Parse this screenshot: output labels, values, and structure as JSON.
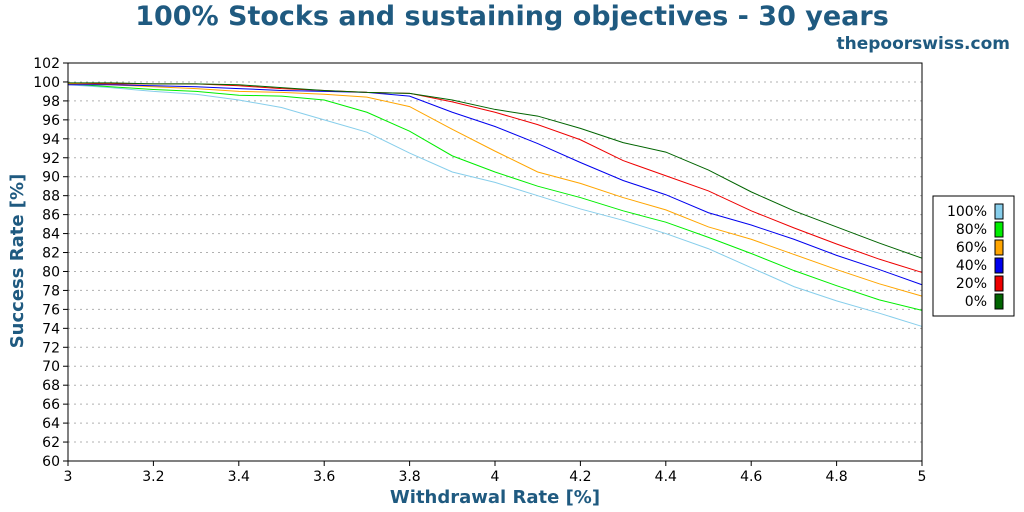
{
  "chart_data": {
    "type": "line",
    "title": "100% Stocks and sustaining objectives - 30 years",
    "subtitle": "thepoorswiss.com",
    "xlabel": "Withdrawal Rate [%]",
    "ylabel": "Success Rate [%]",
    "xlim": [
      3,
      5
    ],
    "ylim": [
      60,
      102
    ],
    "xticks": [
      "3",
      "3.2",
      "3.4",
      "3.6",
      "3.8",
      "4",
      "4.2",
      "4.4",
      "4.6",
      "4.8",
      "5"
    ],
    "yticks": [
      "60",
      "62",
      "64",
      "66",
      "68",
      "70",
      "72",
      "74",
      "76",
      "78",
      "80",
      "82",
      "84",
      "86",
      "88",
      "90",
      "92",
      "94",
      "96",
      "98",
      "100",
      "102"
    ],
    "grid": true,
    "legend_position": "right",
    "x": [
      3.0,
      3.1,
      3.2,
      3.3,
      3.4,
      3.5,
      3.6,
      3.7,
      3.8,
      3.9,
      4.0,
      4.1,
      4.2,
      4.3,
      4.4,
      4.5,
      4.6,
      4.7,
      4.8,
      4.9,
      5.0
    ],
    "series": [
      {
        "name": "100%",
        "color": "#87ceeb",
        "values": [
          99.7,
          99.4,
          99.0,
          98.7,
          98.1,
          97.3,
          96.0,
          94.7,
          92.5,
          90.5,
          89.4,
          88.0,
          86.6,
          85.4,
          84.0,
          82.4,
          80.4,
          78.4,
          76.9,
          75.6,
          74.2
        ]
      },
      {
        "name": "80%",
        "color": "#00ee00",
        "values": [
          99.8,
          99.5,
          99.2,
          99.0,
          98.6,
          98.5,
          98.1,
          96.8,
          94.8,
          92.2,
          90.5,
          89.0,
          87.8,
          86.4,
          85.2,
          83.6,
          81.9,
          80.1,
          78.5,
          77.0,
          75.9
        ]
      },
      {
        "name": "60%",
        "color": "#ffa500",
        "values": [
          99.8,
          99.7,
          99.5,
          99.3,
          99.0,
          98.9,
          98.7,
          98.4,
          97.4,
          95.0,
          92.7,
          90.5,
          89.3,
          87.8,
          86.5,
          84.7,
          83.4,
          81.8,
          80.2,
          78.7,
          77.4
        ]
      },
      {
        "name": "40%",
        "color": "#0000ee",
        "values": [
          99.7,
          99.7,
          99.6,
          99.5,
          99.3,
          99.1,
          99.0,
          98.9,
          98.5,
          96.8,
          95.3,
          93.5,
          91.5,
          89.6,
          88.1,
          86.2,
          84.9,
          83.4,
          81.7,
          80.2,
          78.6
        ]
      },
      {
        "name": "20%",
        "color": "#ee0000",
        "values": [
          99.9,
          99.8,
          99.8,
          99.8,
          99.6,
          99.3,
          99.1,
          98.9,
          98.8,
          97.9,
          96.8,
          95.5,
          93.9,
          91.7,
          90.1,
          88.5,
          86.4,
          84.6,
          82.9,
          81.3,
          79.9
        ]
      },
      {
        "name": "0%",
        "color": "#006400",
        "values": [
          99.9,
          99.9,
          99.8,
          99.8,
          99.7,
          99.4,
          99.1,
          98.9,
          98.8,
          98.1,
          97.1,
          96.4,
          95.1,
          93.6,
          92.6,
          90.7,
          88.4,
          86.4,
          84.7,
          83.0,
          81.4
        ]
      }
    ]
  }
}
